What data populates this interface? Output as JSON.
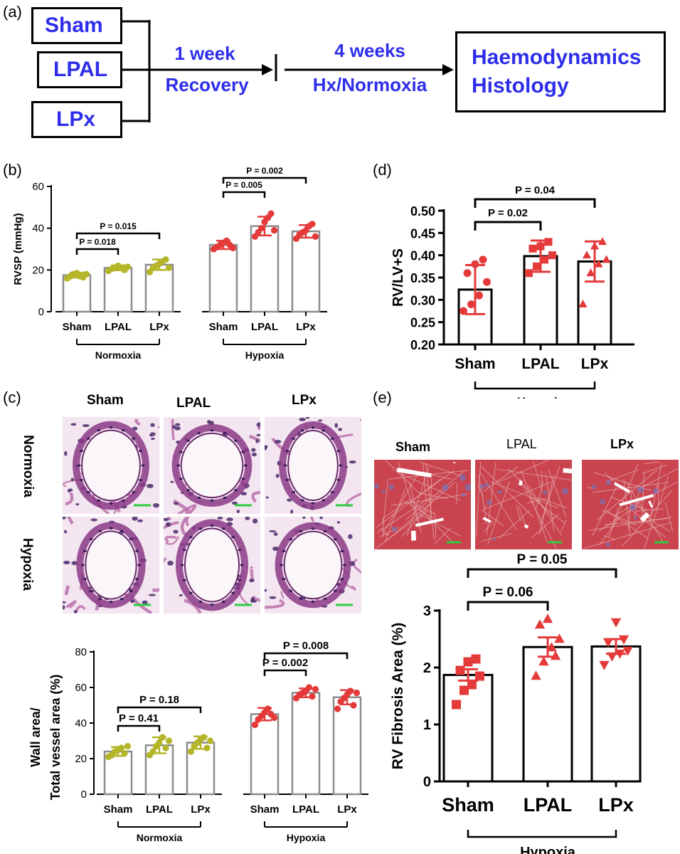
{
  "panels": {
    "a": "(a)",
    "b": "(b)",
    "c": "(c)",
    "d": "(d)",
    "e": "(e)"
  },
  "flow": {
    "groups": [
      "Sham",
      "LPAL",
      "LPx"
    ],
    "step1_line1": "1 week",
    "step1_line2": "Recovery",
    "step2_line1": "4 weeks",
    "step2_line2": "Hx/Normoxia",
    "end_line1": "Haemodynamics",
    "end_line2": "Histology",
    "text_color": "#2e2eea"
  },
  "micrographs_c": {
    "columns": [
      "Sham",
      "LPAL",
      "LPx"
    ],
    "rows": [
      "Normoxia",
      "Hypoxia"
    ]
  },
  "micrographs_e": {
    "columns": [
      "Sham",
      "LPAL",
      "LPx"
    ]
  },
  "colors": {
    "normoxia_points": "#b5b52a",
    "hypoxia_points": "#e43a3a",
    "bar_outline_b_c": "#8c8c8c",
    "bar_outline_d_e": "#000000",
    "scale_bar": "#2ecc40"
  },
  "chart_data": [
    {
      "id": "b",
      "type": "bar",
      "ylabel": "RVSP (mmHg)",
      "ylim": [
        0,
        60
      ],
      "yticks": [
        "0",
        "20",
        "40",
        "60"
      ],
      "groups": [
        {
          "name": "Normoxia",
          "categories": [
            "Sham",
            "LPAL",
            "LPx"
          ],
          "values": [
            17.5,
            21,
            22.5
          ],
          "errors": [
            1.2,
            1.2,
            2.5
          ],
          "points": [
            [
              16,
              17,
              18,
              18.5,
              17,
              16.5,
              18
            ],
            [
              19.5,
              20.5,
              21,
              22,
              21,
              20,
              21.5
            ],
            [
              19,
              21,
              22,
              23,
              24,
              25,
              21
            ]
          ]
        },
        {
          "name": "Hypoxia",
          "categories": [
            "Sham",
            "LPAL",
            "LPx"
          ],
          "values": [
            32,
            41,
            38.5
          ],
          "errors": [
            2,
            4.5,
            3
          ],
          "points": [
            [
              30,
              31,
              32,
              33,
              34,
              32,
              30.5
            ],
            [
              36,
              38,
              40,
              43,
              45,
              47,
              39
            ],
            [
              35,
              37,
              38,
              39,
              41,
              42,
              36
            ]
          ]
        }
      ],
      "comparisons": [
        {
          "group": 0,
          "from": 0,
          "to": 1,
          "label": "P = 0.018"
        },
        {
          "group": 0,
          "from": 0,
          "to": 2,
          "label": "P = 0.015"
        },
        {
          "group": 1,
          "from": 0,
          "to": 1,
          "label": "P = 0.005"
        },
        {
          "group": 1,
          "from": 0,
          "to": 2,
          "label": "P = 0.002"
        }
      ]
    },
    {
      "id": "c",
      "type": "bar",
      "ylabel_line1": "Wall area/",
      "ylabel_line2": "Total vessel area (%)",
      "ylim": [
        0,
        80
      ],
      "yticks": [
        "0",
        "20",
        "40",
        "60",
        "80"
      ],
      "groups": [
        {
          "name": "Normoxia",
          "categories": [
            "Sham",
            "LPAL",
            "LPx"
          ],
          "values": [
            24,
            27.5,
            29
          ],
          "errors": [
            2.5,
            4.5,
            3.5
          ],
          "points": [
            [
              21,
              22,
              24,
              25,
              26,
              23,
              27
            ],
            [
              22,
              24,
              27,
              29,
              32,
              26,
              30
            ],
            [
              24,
              27,
              29,
              31,
              32,
              26,
              30
            ]
          ]
        },
        {
          "name": "Hypoxia",
          "categories": [
            "Sham",
            "LPAL",
            "LPx"
          ],
          "values": [
            45,
            57,
            54.5
          ],
          "errors": [
            3.5,
            2.5,
            4
          ],
          "points": [
            [
              39,
              42,
              44,
              46,
              48,
              45,
              43
            ],
            [
              54,
              56,
              57,
              58,
              60,
              55,
              59
            ],
            [
              48,
              52,
              54,
              56,
              58,
              50,
              57
            ]
          ]
        }
      ],
      "comparisons": [
        {
          "group": 0,
          "from": 0,
          "to": 1,
          "label": "P = 0.41"
        },
        {
          "group": 0,
          "from": 0,
          "to": 2,
          "label": "P = 0.18"
        },
        {
          "group": 1,
          "from": 0,
          "to": 1,
          "label": "P = 0.002"
        },
        {
          "group": 1,
          "from": 0,
          "to": 2,
          "label": "P = 0.008"
        }
      ]
    },
    {
      "id": "d",
      "type": "bar",
      "ylabel": "RV/LV+S",
      "xlabel": "Hypoxia",
      "ylim": [
        0.2,
        0.5
      ],
      "yticks": [
        "0.20",
        "0.25",
        "0.30",
        "0.35",
        "0.40",
        "0.45",
        "0.50"
      ],
      "categories": [
        "Sham",
        "LPAL",
        "LPx"
      ],
      "values": [
        0.323,
        0.398,
        0.386
      ],
      "errors": [
        0.055,
        0.035,
        0.045
      ],
      "points": [
        [
          0.275,
          0.29,
          0.31,
          0.34,
          0.36,
          0.38,
          0.39
        ],
        [
          0.36,
          0.375,
          0.39,
          0.4,
          0.415,
          0.42,
          0.43
        ],
        [
          0.29,
          0.36,
          0.38,
          0.39,
          0.4,
          0.42,
          0.43
        ]
      ],
      "comparisons": [
        {
          "from": 0,
          "to": 1,
          "label": "P = 0.02"
        },
        {
          "from": 0,
          "to": 2,
          "label": "P = 0.04"
        }
      ]
    },
    {
      "id": "e",
      "type": "bar",
      "ylabel": "RV Fibrosis Area (%)",
      "xlabel": "Hypoxia",
      "ylim": [
        0,
        3
      ],
      "yticks": [
        "0",
        "1",
        "2",
        "3"
      ],
      "categories": [
        "Sham",
        "LPAL",
        "LPx"
      ],
      "values": [
        1.87,
        2.36,
        2.37
      ],
      "errors": [
        0.1,
        0.17,
        0.13
      ],
      "points": [
        [
          1.35,
          1.6,
          1.7,
          1.85,
          1.95,
          2.1,
          2.15
        ],
        [
          1.85,
          2.1,
          2.35,
          2.5,
          2.75,
          2.85,
          2.2
        ],
        [
          2.05,
          2.2,
          2.25,
          2.3,
          2.45,
          2.8,
          2.5
        ]
      ],
      "comparisons": [
        {
          "from": 0,
          "to": 1,
          "label": "P = 0.06"
        },
        {
          "from": 0,
          "to": 2,
          "label": "P = 0.05"
        }
      ]
    }
  ]
}
